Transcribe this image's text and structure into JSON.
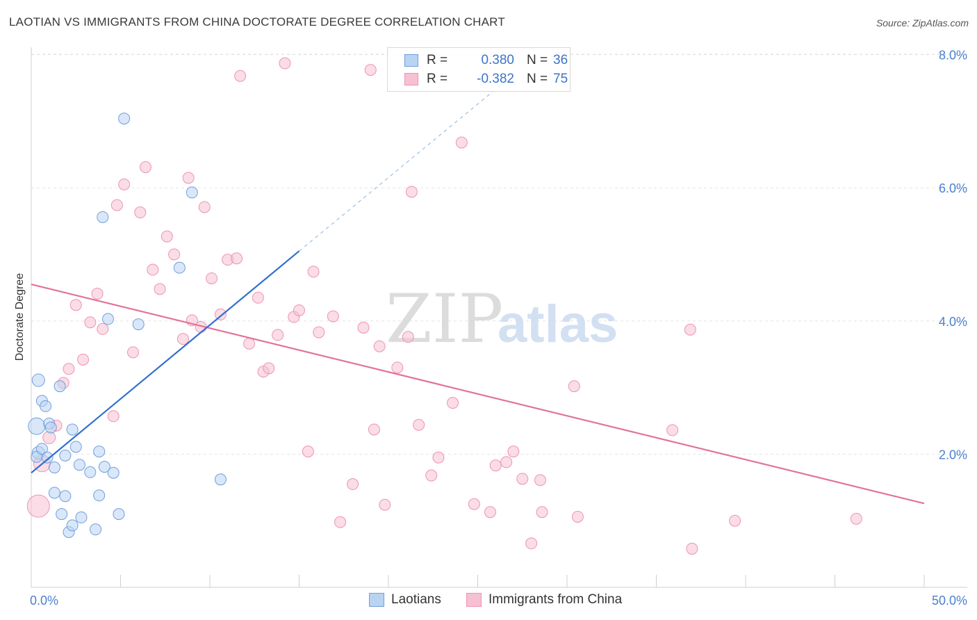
{
  "header": {
    "title": "LAOTIAN VS IMMIGRANTS FROM CHINA DOCTORATE DEGREE CORRELATION CHART",
    "source": "Source: ZipAtlas.com"
  },
  "watermark": {
    "part1": "ZIP",
    "part2": "atlas"
  },
  "colors": {
    "blue_fill": "#b9d3f2",
    "blue_stroke": "#6f9fdc",
    "blue_line": "#2f6fd0",
    "pink_fill": "#f6c1d2",
    "pink_stroke": "#ee93b2",
    "pink_line": "#e3729b",
    "tick_text": "#4a7fd0",
    "grid": "#e3e3e3"
  },
  "legend": {
    "rows": [
      {
        "r_label": "R =",
        "r_value": "0.380",
        "n_label": "N =",
        "n_value": "36"
      },
      {
        "r_label": "R =",
        "r_value": "-0.382",
        "n_label": "N =",
        "n_value": "75"
      }
    ]
  },
  "bottom_legend": {
    "series1": "Laotians",
    "series2": "Immigrants from China"
  },
  "chart_data": {
    "type": "scatter",
    "title": "LAOTIAN VS IMMIGRANTS FROM CHINA DOCTORATE DEGREE CORRELATION CHART",
    "ylabel": "Doctorate Degree",
    "xlabel": "",
    "xlim": [
      0,
      50
    ],
    "ylim": [
      0,
      8.5
    ],
    "x_tick_labels": [
      "0.0%",
      "50.0%"
    ],
    "y_ticks": [
      2,
      4,
      6,
      8
    ],
    "y_tick_labels": [
      "2.0%",
      "4.0%",
      "6.0%",
      "8.0%"
    ],
    "grid": true,
    "legend_position": "top-center",
    "series": [
      {
        "name": "Laotians",
        "r": 0.38,
        "n": 36,
        "trend": {
          "x0": 0,
          "y0": 1.72,
          "x1": 15,
          "y1": 5.05,
          "dash_to_x": 27,
          "dash_to_y": 7.7
        },
        "points": [
          [
            0.3,
            2.42,
            12
          ],
          [
            0.4,
            2.02,
            9
          ],
          [
            0.3,
            1.96,
            8
          ],
          [
            0.4,
            3.11,
            9
          ],
          [
            0.6,
            2.08,
            8
          ],
          [
            0.6,
            2.8,
            8
          ],
          [
            0.8,
            2.72,
            8
          ],
          [
            1.0,
            2.46,
            8
          ],
          [
            0.9,
            1.95,
            8
          ],
          [
            1.1,
            2.4,
            8
          ],
          [
            1.3,
            1.8,
            8
          ],
          [
            1.3,
            1.42,
            8
          ],
          [
            1.6,
            3.02,
            8
          ],
          [
            1.7,
            1.1,
            8
          ],
          [
            1.9,
            1.98,
            8
          ],
          [
            1.9,
            1.37,
            8
          ],
          [
            2.1,
            0.83,
            8
          ],
          [
            2.3,
            0.93,
            8
          ],
          [
            2.3,
            2.37,
            8
          ],
          [
            2.5,
            2.11,
            8
          ],
          [
            2.7,
            1.84,
            8
          ],
          [
            2.8,
            1.05,
            8
          ],
          [
            3.3,
            1.73,
            8
          ],
          [
            3.6,
            0.87,
            8
          ],
          [
            3.8,
            1.38,
            8
          ],
          [
            3.8,
            2.04,
            8
          ],
          [
            4.1,
            1.81,
            8
          ],
          [
            4.3,
            4.03,
            8
          ],
          [
            4.6,
            1.72,
            8
          ],
          [
            4.9,
            1.1,
            8
          ],
          [
            5.2,
            7.04,
            8
          ],
          [
            6.0,
            3.95,
            8
          ],
          [
            4.0,
            5.56,
            8
          ],
          [
            8.3,
            4.8,
            8
          ],
          [
            9.0,
            5.93,
            8
          ],
          [
            10.6,
            1.62,
            8
          ]
        ]
      },
      {
        "name": "Immigrants from China",
        "r": -0.382,
        "n": 75,
        "trend": {
          "x0": 0,
          "y0": 4.55,
          "x1": 50,
          "y1": 1.26
        },
        "points": [
          [
            0.4,
            1.22,
            16
          ],
          [
            0.6,
            1.86,
            12
          ],
          [
            1.0,
            2.25,
            9
          ],
          [
            1.4,
            2.43,
            8
          ],
          [
            1.8,
            3.07,
            8
          ],
          [
            2.1,
            3.28,
            8
          ],
          [
            2.5,
            4.24,
            8
          ],
          [
            2.9,
            3.42,
            8
          ],
          [
            3.3,
            3.98,
            8
          ],
          [
            3.7,
            4.41,
            8
          ],
          [
            4.0,
            3.88,
            8
          ],
          [
            4.6,
            2.57,
            8
          ],
          [
            4.8,
            5.74,
            8
          ],
          [
            5.2,
            6.05,
            8
          ],
          [
            5.7,
            3.53,
            8
          ],
          [
            6.1,
            5.63,
            8
          ],
          [
            6.4,
            6.31,
            8
          ],
          [
            6.8,
            4.77,
            8
          ],
          [
            7.2,
            4.48,
            8
          ],
          [
            7.6,
            5.27,
            8
          ],
          [
            8.0,
            5.0,
            8
          ],
          [
            8.5,
            3.73,
            8
          ],
          [
            8.8,
            6.15,
            8
          ],
          [
            9.0,
            4.01,
            8
          ],
          [
            9.5,
            3.91,
            8
          ],
          [
            9.7,
            5.71,
            8
          ],
          [
            10.1,
            4.64,
            8
          ],
          [
            10.6,
            4.1,
            8
          ],
          [
            11.0,
            4.92,
            8
          ],
          [
            11.5,
            4.94,
            8
          ],
          [
            11.7,
            7.68,
            8
          ],
          [
            12.2,
            3.66,
            8
          ],
          [
            12.7,
            4.35,
            8
          ],
          [
            13.0,
            3.24,
            8
          ],
          [
            13.3,
            3.29,
            8
          ],
          [
            13.8,
            3.79,
            8
          ],
          [
            14.2,
            7.87,
            8
          ],
          [
            14.7,
            4.06,
            8
          ],
          [
            15.0,
            4.16,
            8
          ],
          [
            15.5,
            2.04,
            8
          ],
          [
            15.8,
            4.74,
            8
          ],
          [
            16.1,
            3.83,
            8
          ],
          [
            16.9,
            4.07,
            8
          ],
          [
            17.3,
            0.98,
            8
          ],
          [
            18.0,
            1.55,
            8
          ],
          [
            18.6,
            3.9,
            8
          ],
          [
            19.0,
            7.77,
            8
          ],
          [
            19.2,
            2.37,
            8
          ],
          [
            19.5,
            3.62,
            8
          ],
          [
            19.8,
            1.24,
            8
          ],
          [
            20.5,
            3.3,
            8
          ],
          [
            21.1,
            3.76,
            8
          ],
          [
            21.3,
            5.94,
            8
          ],
          [
            21.7,
            2.44,
            8
          ],
          [
            22.4,
            1.68,
            8
          ],
          [
            22.8,
            1.95,
            8
          ],
          [
            23.6,
            2.77,
            8
          ],
          [
            24.1,
            6.68,
            8
          ],
          [
            24.8,
            1.25,
            8
          ],
          [
            25.7,
            1.13,
            8
          ],
          [
            26.0,
            1.83,
            8
          ],
          [
            26.6,
            1.88,
            8
          ],
          [
            27.0,
            2.04,
            8
          ],
          [
            27.5,
            1.63,
            8
          ],
          [
            28.0,
            0.66,
            8
          ],
          [
            28.5,
            1.61,
            8
          ],
          [
            28.6,
            1.13,
            8
          ],
          [
            29.5,
            7.95,
            8
          ],
          [
            30.4,
            3.02,
            8
          ],
          [
            30.6,
            1.06,
            8
          ],
          [
            35.9,
            2.36,
            8
          ],
          [
            36.9,
            3.87,
            8
          ],
          [
            37.0,
            0.58,
            8
          ],
          [
            39.4,
            1.0,
            8
          ],
          [
            46.2,
            1.03,
            8
          ]
        ]
      }
    ]
  }
}
